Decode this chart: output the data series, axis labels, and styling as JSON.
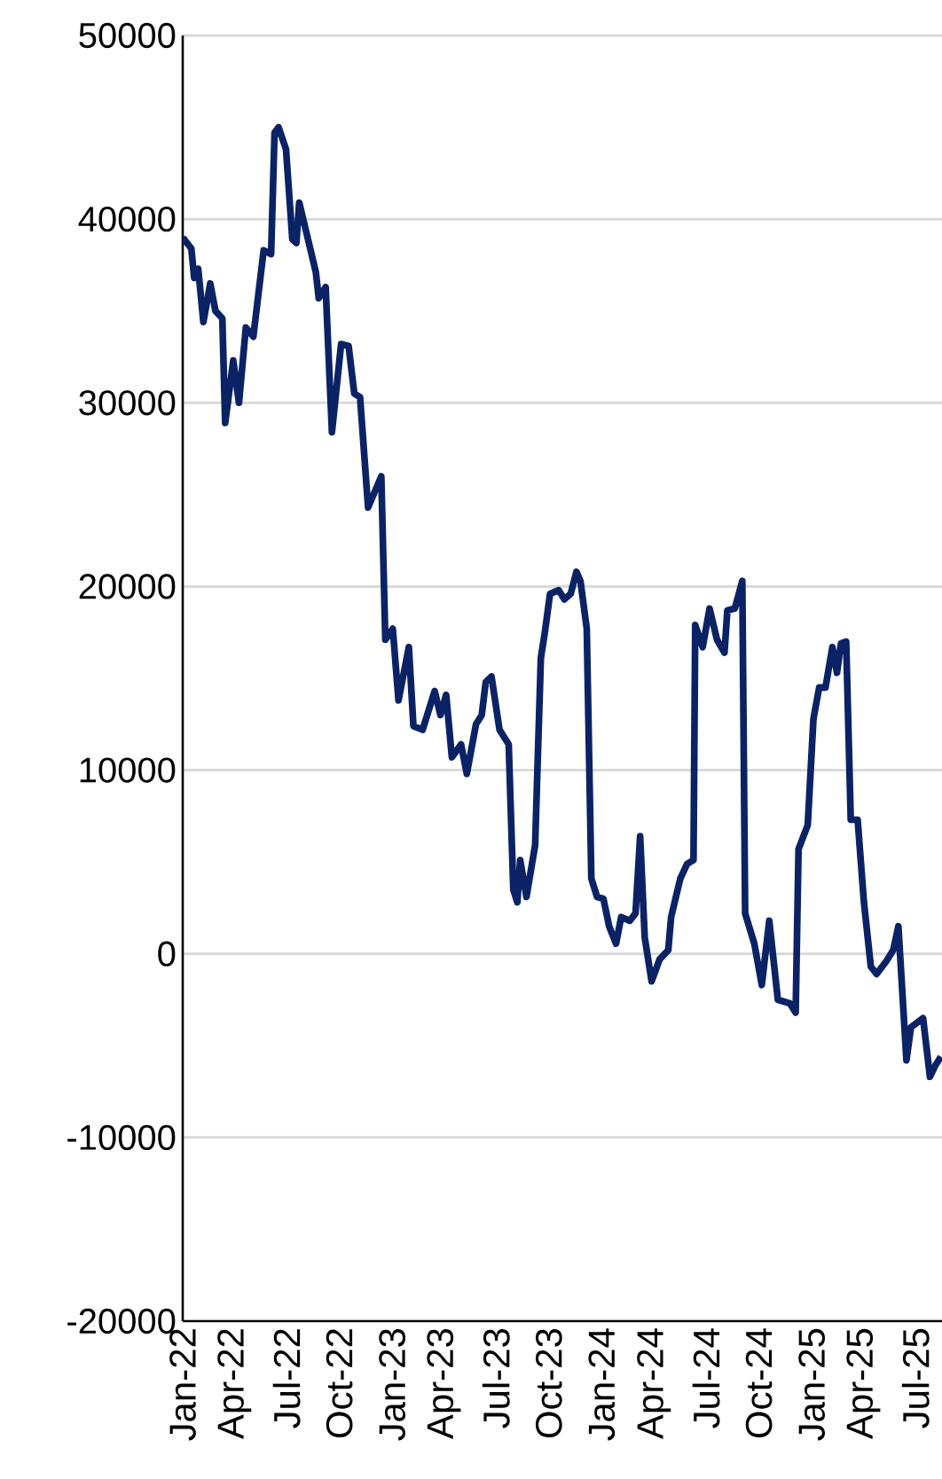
{
  "chart_data": {
    "type": "line",
    "color": "#0b2265",
    "grid": "y",
    "xlim": [
      "2022-01-01",
      "2025-08-16"
    ],
    "ylim": [
      -20000,
      50000
    ],
    "yticks": [
      -20000,
      -10000,
      0,
      10000,
      20000,
      30000,
      40000,
      50000
    ],
    "xticks": [
      {
        "value": "2022-01-01",
        "label": "Jan-22"
      },
      {
        "value": "2022-04-01",
        "label": "Apr-22"
      },
      {
        "value": "2022-07-01",
        "label": "Jul-22"
      },
      {
        "value": "2022-10-01",
        "label": "Oct-22"
      },
      {
        "value": "2023-01-01",
        "label": "Jan-23"
      },
      {
        "value": "2023-04-01",
        "label": "Apr-23"
      },
      {
        "value": "2023-07-01",
        "label": "Jul-23"
      },
      {
        "value": "2023-10-01",
        "label": "Oct-23"
      },
      {
        "value": "2024-01-01",
        "label": "Jan-24"
      },
      {
        "value": "2024-04-01",
        "label": "Apr-24"
      },
      {
        "value": "2024-07-01",
        "label": "Jul-24"
      },
      {
        "value": "2024-10-01",
        "label": "Oct-24"
      },
      {
        "value": "2025-01-01",
        "label": "Jan-25"
      },
      {
        "value": "2025-04-01",
        "label": "Apr-25"
      },
      {
        "value": "2025-07-01",
        "label": "Jul-25"
      }
    ],
    "x": [
      "2022-01-01",
      "2022-01-16",
      "2022-01-21",
      "2022-01-28",
      "2022-02-06",
      "2022-02-18",
      "2022-02-27",
      "2022-03-11",
      "2022-03-16",
      "2022-03-30",
      "2022-04-09",
      "2022-04-21",
      "2022-05-04",
      "2022-05-22",
      "2022-06-04",
      "2022-06-10",
      "2022-06-17",
      "2022-06-30",
      "2022-07-11",
      "2022-07-18",
      "2022-07-23",
      "2022-08-05",
      "2022-08-21",
      "2022-08-26",
      "2022-09-07",
      "2022-09-18",
      "2022-10-04",
      "2022-10-17",
      "2022-10-27",
      "2022-11-06",
      "2022-11-20",
      "2022-12-13",
      "2022-12-20",
      "2023-01-02",
      "2023-01-12",
      "2023-01-30",
      "2023-02-07",
      "2023-02-23",
      "2023-03-16",
      "2023-03-26",
      "2023-04-05",
      "2023-04-15",
      "2023-05-01",
      "2023-05-11",
      "2023-05-27",
      "2023-06-06",
      "2023-06-13",
      "2023-06-23",
      "2023-07-07",
      "2023-07-23",
      "2023-07-31",
      "2023-08-07",
      "2023-08-12",
      "2023-08-23",
      "2023-09-07",
      "2023-09-17",
      "2023-09-24",
      "2023-10-03",
      "2023-10-18",
      "2023-10-28",
      "2023-11-08",
      "2023-11-18",
      "2023-11-25",
      "2023-12-06",
      "2023-12-14",
      "2023-12-24",
      "2024-01-04",
      "2024-01-14",
      "2024-01-26",
      "2024-02-04",
      "2024-02-19",
      "2024-02-29",
      "2024-03-08",
      "2024-03-16",
      "2024-03-28",
      "2024-04-11",
      "2024-04-26",
      "2024-05-01",
      "2024-05-17",
      "2024-05-29",
      "2024-06-09",
      "2024-06-12",
      "2024-06-25",
      "2024-07-07",
      "2024-07-20",
      "2024-08-02",
      "2024-08-07",
      "2024-08-20",
      "2024-09-02",
      "2024-09-07",
      "2024-09-23",
      "2024-10-06",
      "2024-10-19",
      "2024-11-03",
      "2024-11-24",
      "2024-12-04",
      "2024-12-09",
      "2024-12-25",
      "2025-01-04",
      "2025-01-14",
      "2025-01-25",
      "2025-02-06",
      "2025-02-14",
      "2025-02-21",
      "2025-03-02",
      "2025-03-10",
      "2025-03-22",
      "2025-04-02",
      "2025-04-14",
      "2025-04-24",
      "2025-05-11",
      "2025-05-23",
      "2025-06-01",
      "2025-06-15",
      "2025-06-23",
      "2025-07-14",
      "2025-07-26",
      "2025-08-04",
      "2025-08-14"
    ],
    "values": [
      39000,
      38400,
      36800,
      37300,
      34400,
      36500,
      35000,
      34600,
      28900,
      32300,
      30000,
      34100,
      33600,
      38300,
      38100,
      44700,
      45000,
      43800,
      38900,
      38700,
      40900,
      39200,
      37100,
      35700,
      36300,
      28400,
      33200,
      33100,
      30500,
      30300,
      24300,
      26000,
      17100,
      17700,
      13800,
      16700,
      12400,
      12200,
      14300,
      13000,
      14100,
      10700,
      11400,
      9800,
      12500,
      13000,
      14800,
      15100,
      12200,
      11400,
      3500,
      2800,
      5100,
      3100,
      5900,
      16100,
      17500,
      19600,
      19800,
      19300,
      19600,
      20800,
      20300,
      17700,
      4100,
      3100,
      3000,
      1500,
      550,
      2000,
      1800,
      2200,
      6400,
      900,
      -1500,
      -300,
      200,
      2000,
      4100,
      4900,
      5100,
      17900,
      16700,
      18800,
      17100,
      16400,
      18700,
      18800,
      20300,
      2200,
      550,
      -1700,
      1800,
      -2500,
      -2700,
      -3200,
      5700,
      7000,
      12800,
      14500,
      14500,
      16700,
      15300,
      16900,
      17000,
      7300,
      7300,
      2800,
      -700,
      -1100,
      -400,
      200,
      1500,
      -5800,
      -4000,
      -3500,
      -6700,
      -6100,
      -5600
    ]
  }
}
